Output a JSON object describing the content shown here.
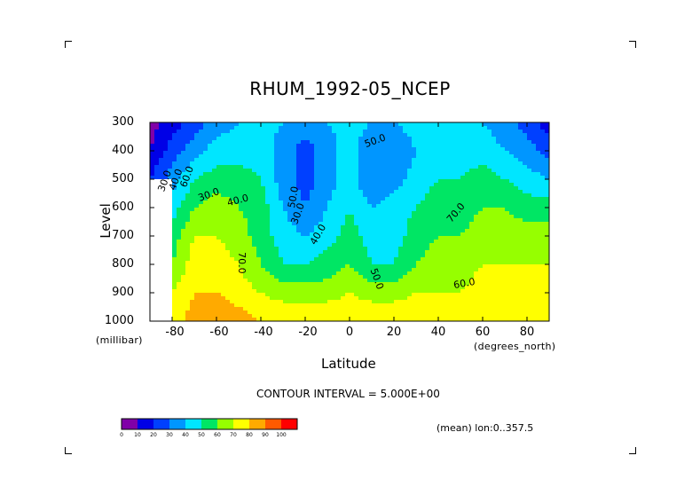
{
  "chart_data": {
    "type": "heatmap",
    "title": "RHUM_1992-05_NCEP",
    "xlabel": "Latitude",
    "ylabel": "Level",
    "x_unit": "(degrees_north)",
    "y_unit": "(millibar)",
    "xlim": [
      -90,
      90
    ],
    "ylim": [
      1000,
      300
    ],
    "x_ticks": [
      "-80",
      "-60",
      "-40",
      "-20",
      "0",
      "20",
      "40",
      "60",
      "80"
    ],
    "y_ticks": [
      "300",
      "400",
      "500",
      "600",
      "700",
      "800",
      "900",
      "1000"
    ],
    "contour_interval_text": "CONTOUR INTERVAL = 5.000E+00",
    "mean_text": "(mean) lon:0..357.5",
    "contour_labels": [
      "30.0",
      "40.0",
      "60.0",
      "30.0",
      "40.0",
      "70.0",
      "50.0",
      "30.0",
      "40.0",
      "50.0",
      "50.0",
      "70.0",
      "60.0"
    ],
    "lat": [
      -90,
      -80,
      -70,
      -60,
      -50,
      -40,
      -30,
      -20,
      -10,
      0,
      10,
      20,
      30,
      40,
      50,
      60,
      70,
      80,
      90
    ],
    "levels": [
      300,
      400,
      500,
      600,
      700,
      800,
      900,
      1000
    ],
    "values": [
      [
        5,
        15,
        25,
        35,
        40,
        45,
        40,
        35,
        40,
        45,
        40,
        40,
        45,
        45,
        45,
        40,
        35,
        25,
        15
      ],
      [
        10,
        25,
        35,
        45,
        45,
        45,
        35,
        25,
        35,
        45,
        30,
        30,
        40,
        45,
        45,
        45,
        40,
        35,
        25
      ],
      [
        20,
        35,
        50,
        55,
        55,
        50,
        35,
        25,
        35,
        45,
        30,
        35,
        45,
        50,
        50,
        55,
        50,
        45,
        40
      ],
      [
        null,
        45,
        60,
        65,
        60,
        55,
        40,
        30,
        40,
        50,
        40,
        45,
        50,
        55,
        55,
        60,
        60,
        55,
        55
      ],
      [
        null,
        55,
        70,
        70,
        65,
        55,
        45,
        40,
        45,
        55,
        45,
        45,
        55,
        60,
        60,
        65,
        65,
        65,
        65
      ],
      [
        null,
        60,
        75,
        75,
        70,
        60,
        50,
        50,
        55,
        60,
        50,
        50,
        60,
        65,
        65,
        70,
        70,
        70,
        70
      ],
      [
        null,
        70,
        80,
        80,
        75,
        70,
        65,
        65,
        65,
        70,
        65,
        65,
        70,
        70,
        70,
        75,
        75,
        75,
        75
      ],
      [
        null,
        75,
        85,
        90,
        85,
        80,
        80,
        80,
        80,
        80,
        80,
        80,
        80,
        80,
        75,
        80,
        80,
        80,
        80
      ]
    ],
    "colorbar": {
      "ticks": [
        "0",
        "10",
        "20",
        "30",
        "40",
        "50",
        "60",
        "70",
        "80",
        "90",
        "100"
      ],
      "colors": [
        "#8000a8",
        "#0000e6",
        "#0040ff",
        "#0096ff",
        "#00e6ff",
        "#00e664",
        "#96ff00",
        "#ffff00",
        "#ffaa00",
        "#ff5a00",
        "#ff0000"
      ]
    },
    "grid": false,
    "legend": "bottom-left colorbar"
  }
}
